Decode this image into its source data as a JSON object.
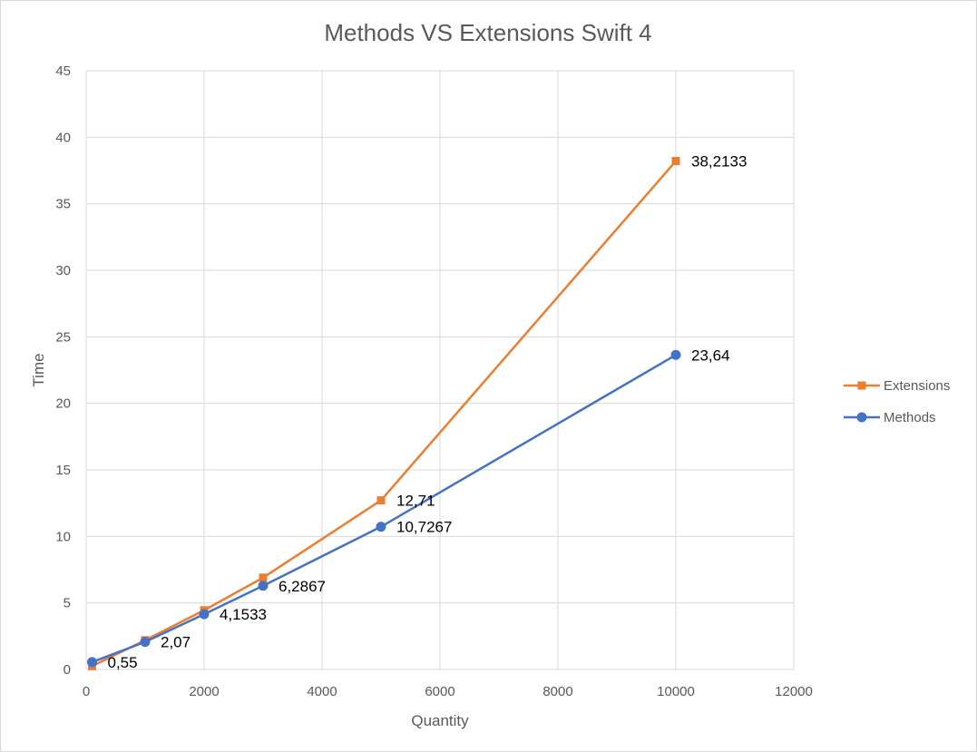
{
  "chart_data": {
    "type": "scatter",
    "title": "Methods VS Extensions Swift 4",
    "xlabel": "Quantity",
    "ylabel": "Time",
    "xlim": [
      0,
      12000
    ],
    "ylim": [
      0,
      45
    ],
    "x_ticks": [
      "0",
      "2000",
      "4000",
      "6000",
      "8000",
      "10000",
      "12000"
    ],
    "y_ticks": [
      "0",
      "5",
      "10",
      "15",
      "20",
      "25",
      "30",
      "35",
      "40",
      "45"
    ],
    "grid": true,
    "legend_position": "right",
    "series": [
      {
        "name": "Extensions",
        "color": "#ED7D31",
        "marker": "square",
        "points": [
          {
            "x": 100,
            "y": 0.25,
            "label": ""
          },
          {
            "x": 1000,
            "y": 2.2,
            "label": ""
          },
          {
            "x": 2000,
            "y": 4.45,
            "label": ""
          },
          {
            "x": 3000,
            "y": 6.9,
            "label": ""
          },
          {
            "x": 5000,
            "y": 12.71,
            "label": "12,71"
          },
          {
            "x": 10000,
            "y": 38.2133,
            "label": "38,2133"
          }
        ]
      },
      {
        "name": "Methods",
        "color": "#4472C4",
        "marker": "circle",
        "points": [
          {
            "x": 100,
            "y": 0.55,
            "label": "0,55"
          },
          {
            "x": 1000,
            "y": 2.07,
            "label": "2,07"
          },
          {
            "x": 2000,
            "y": 4.1533,
            "label": "4,1533"
          },
          {
            "x": 3000,
            "y": 6.2867,
            "label": "6,2867"
          },
          {
            "x": 5000,
            "y": 10.7267,
            "label": "10,7267"
          },
          {
            "x": 10000,
            "y": 23.64,
            "label": "23,64"
          }
        ]
      }
    ]
  }
}
